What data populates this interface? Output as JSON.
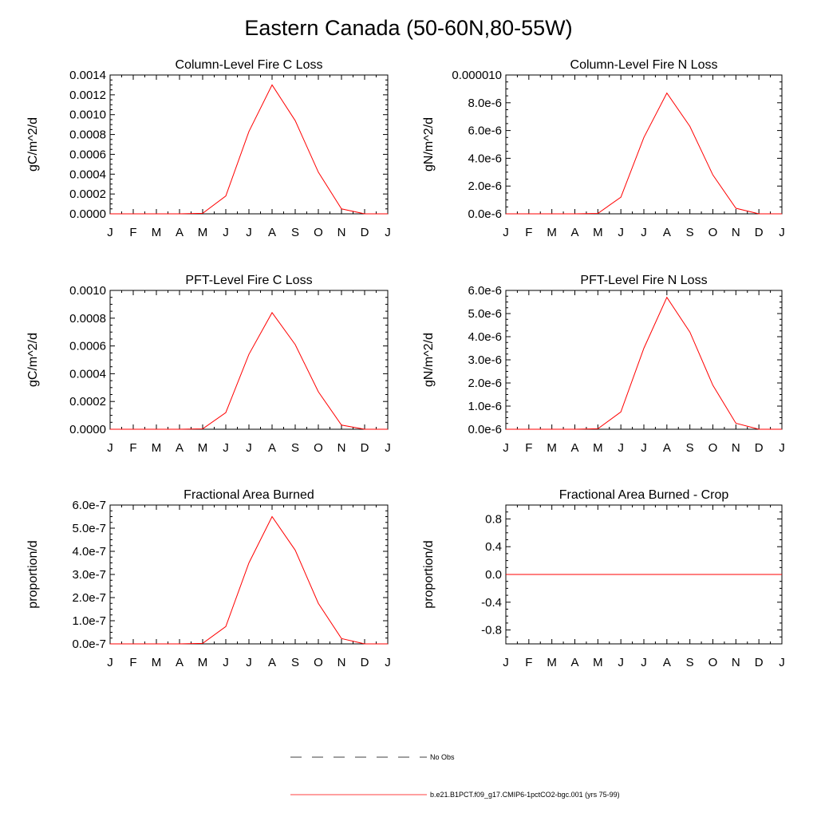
{
  "title": "Eastern Canada (50-60N,80-55W)",
  "colors": {
    "model_line": "#ff0000",
    "axes": "#000000",
    "background": "#ffffff"
  },
  "month_labels": [
    "J",
    "F",
    "M",
    "A",
    "M",
    "J",
    "J",
    "A",
    "S",
    "O",
    "N",
    "D",
    "J"
  ],
  "legend": {
    "obs_label": "No Obs",
    "model_label": "b.e21.B1PCT.f09_g17.CMIP6-1pctCO2-bgc.001 (yrs 75-99)"
  },
  "chart_data": [
    {
      "type": "line",
      "title": "Column-Level Fire C Loss",
      "ylabel": "gC/m^2/d",
      "ylim": [
        0,
        0.0014
      ],
      "yticks": [
        0,
        0.0002,
        0.0004,
        0.0006,
        0.0008,
        0.001,
        0.0012,
        0.0014
      ],
      "ytick_labels": [
        "0.0000",
        "0.0002",
        "0.0004",
        "0.0006",
        "0.0008",
        "0.0010",
        "0.0012",
        "0.0014"
      ],
      "series": [
        {
          "values": [
            0,
            0,
            0,
            0,
            5e-06,
            0.00018,
            0.00083,
            0.0013,
            0.00094,
            0.00042,
            5e-05,
            0,
            0
          ]
        }
      ]
    },
    {
      "type": "line",
      "title": "Column-Level Fire N Loss",
      "ylabel": "gN/m^2/d",
      "ylim": [
        0,
        1e-05
      ],
      "yticks": [
        0,
        2e-06,
        4e-06,
        6e-06,
        8e-06,
        1e-05
      ],
      "ytick_labels": [
        "0.0e-6",
        "2.0e-6",
        "4.0e-6",
        "6.0e-6",
        "8.0e-6",
        "0.000010"
      ],
      "series": [
        {
          "values": [
            0,
            0,
            0,
            0,
            3e-08,
            1.2e-06,
            5.5e-06,
            8.7e-06,
            6.3e-06,
            2.8e-06,
            4e-07,
            0,
            0
          ]
        }
      ]
    },
    {
      "type": "line",
      "title": "PFT-Level Fire C Loss",
      "ylabel": "gC/m^2/d",
      "ylim": [
        0,
        0.001
      ],
      "yticks": [
        0,
        0.0002,
        0.0004,
        0.0006,
        0.0008,
        0.001
      ],
      "ytick_labels": [
        "0.0000",
        "0.0002",
        "0.0004",
        "0.0006",
        "0.0008",
        "0.0010"
      ],
      "series": [
        {
          "values": [
            0,
            0,
            0,
            0,
            3e-06,
            0.00012,
            0.00054,
            0.00084,
            0.00061,
            0.00027,
            3e-05,
            0,
            0
          ]
        }
      ]
    },
    {
      "type": "line",
      "title": "PFT-Level Fire N Loss",
      "ylabel": "gN/m^2/d",
      "ylim": [
        0,
        6e-06
      ],
      "yticks": [
        0,
        1e-06,
        2e-06,
        3e-06,
        4e-06,
        5e-06,
        6e-06
      ],
      "ytick_labels": [
        "0.0e-6",
        "1.0e-6",
        "2.0e-6",
        "3.0e-6",
        "4.0e-6",
        "5.0e-6",
        "6.0e-6"
      ],
      "series": [
        {
          "values": [
            0,
            0,
            0,
            0,
            2e-08,
            7.5e-07,
            3.5e-06,
            5.7e-06,
            4.2e-06,
            1.9e-06,
            2.6e-07,
            0,
            0
          ]
        }
      ]
    },
    {
      "type": "line",
      "title": "Fractional Area Burned",
      "ylabel": "proportion/d",
      "ylim": [
        0,
        6e-07
      ],
      "yticks": [
        0,
        1e-07,
        2e-07,
        3e-07,
        4e-07,
        5e-07,
        6e-07
      ],
      "ytick_labels": [
        "0.0e-7",
        "1.0e-7",
        "2.0e-7",
        "3.0e-7",
        "4.0e-7",
        "5.0e-7",
        "6.0e-7"
      ],
      "series": [
        {
          "values": [
            0,
            0,
            0,
            0,
            2e-09,
            7.5e-08,
            3.5e-07,
            5.5e-07,
            4.05e-07,
            1.75e-07,
            2.3e-08,
            0,
            0
          ]
        }
      ]
    },
    {
      "type": "line",
      "title": "Fractional Area Burned - Crop",
      "ylabel": "proportion/d",
      "ylim": [
        -1,
        1
      ],
      "yticks": [
        -0.8,
        -0.4,
        0,
        0.4,
        0.8
      ],
      "ytick_labels": [
        "-0.8",
        "-0.4",
        "0.0",
        "0.4",
        "0.8"
      ],
      "series": [
        {
          "values": [
            0,
            0,
            0,
            0,
            0,
            0,
            0,
            0,
            0,
            0,
            0,
            0,
            0
          ]
        }
      ]
    }
  ]
}
